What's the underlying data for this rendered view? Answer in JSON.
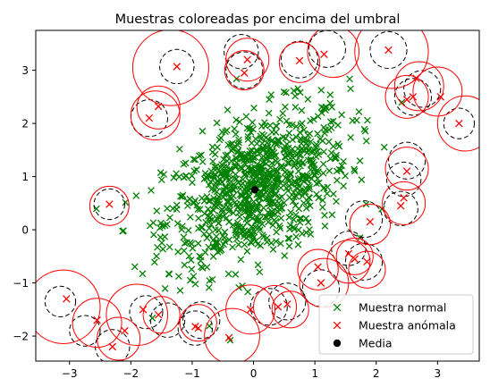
{
  "chart_data": {
    "type": "scatter",
    "title": "Muestras coloreadas por encima del umbral",
    "xlabel": "",
    "ylabel": "",
    "xlim": [
      -3.55,
      3.68
    ],
    "ylim": [
      -2.47,
      3.75
    ],
    "xticks": [
      -3,
      -2,
      -1,
      0,
      1,
      2,
      3
    ],
    "yticks": [
      -2,
      -1,
      0,
      1,
      2,
      3
    ],
    "grid": false,
    "legend_position": "lower-right",
    "colors": {
      "normal": "#008000",
      "anomaly": "#ff0000",
      "mean": "#000000",
      "dashed_circle": "#000000",
      "solid_circle": "#ff0000"
    },
    "series": [
      {
        "name": "Muestra normal",
        "marker": "x",
        "color": "#008000",
        "count_estimate": 900,
        "mean": [
          0.05,
          0.8
        ],
        "spread": [
          0.75,
          0.75
        ]
      },
      {
        "name": "Muestra anómala",
        "marker": "x",
        "color": "#ff0000",
        "points": [
          [
            -3.05,
            -1.3
          ],
          [
            -2.55,
            -1.7
          ],
          [
            -2.35,
            0.48
          ],
          [
            -2.3,
            -2.2
          ],
          [
            -2.1,
            -1.9
          ],
          [
            -1.8,
            -1.5
          ],
          [
            -1.55,
            -1.6
          ],
          [
            -1.25,
            3.07
          ],
          [
            -1.55,
            2.32
          ],
          [
            -1.7,
            2.1
          ],
          [
            -0.95,
            -1.82
          ],
          [
            -0.9,
            -1.85
          ],
          [
            -0.4,
            -2.03
          ],
          [
            -0.15,
            2.95
          ],
          [
            -0.1,
            3.2
          ],
          [
            -0.05,
            -1.5
          ],
          [
            0.4,
            -1.45
          ],
          [
            0.55,
            -1.4
          ],
          [
            0.75,
            3.18
          ],
          [
            1.05,
            -0.7
          ],
          [
            1.1,
            -1.0
          ],
          [
            1.15,
            3.3
          ],
          [
            1.55,
            -0.45
          ],
          [
            1.65,
            -0.55
          ],
          [
            1.85,
            -0.6
          ],
          [
            1.9,
            0.15
          ],
          [
            2.2,
            3.38
          ],
          [
            2.4,
            0.45
          ],
          [
            2.45,
            0.6
          ],
          [
            2.5,
            1.1
          ],
          [
            2.5,
            2.45
          ],
          [
            2.6,
            2.5
          ],
          [
            2.65,
            2.85
          ],
          [
            3.05,
            2.5
          ],
          [
            3.35,
            2.0
          ]
        ]
      },
      {
        "name": "Media",
        "marker": "o",
        "color": "#000000",
        "points": [
          [
            0.02,
            0.75
          ]
        ]
      }
    ],
    "circles": {
      "dashed": [
        [
          -3.15,
          -1.35,
          0.25
        ],
        [
          -2.75,
          -1.9,
          0.25
        ],
        [
          -2.35,
          0.48,
          0.25
        ],
        [
          -2.3,
          -2.2,
          0.28
        ],
        [
          -1.75,
          -1.55,
          0.27
        ],
        [
          -1.4,
          -1.7,
          0.28
        ],
        [
          -1.25,
          3.07,
          0.28
        ],
        [
          -1.7,
          2.1,
          0.3
        ],
        [
          -0.95,
          -1.85,
          0.28
        ],
        [
          -0.85,
          -1.7,
          0.3
        ],
        [
          -0.2,
          3.35,
          0.28
        ],
        [
          -0.15,
          3.0,
          0.3
        ],
        [
          0.25,
          -1.45,
          0.3
        ],
        [
          0.55,
          -1.35,
          0.3
        ],
        [
          0.75,
          3.2,
          0.3
        ],
        [
          1.1,
          -1.1,
          0.3
        ],
        [
          1.2,
          3.4,
          0.3
        ],
        [
          1.55,
          -0.35,
          0.28
        ],
        [
          1.8,
          0.2,
          0.3
        ],
        [
          1.8,
          -0.6,
          0.3
        ],
        [
          2.2,
          3.38,
          0.3
        ],
        [
          2.4,
          0.4,
          0.28
        ],
        [
          2.45,
          0.95,
          0.28
        ],
        [
          2.5,
          1.3,
          0.3
        ],
        [
          2.6,
          2.5,
          0.3
        ],
        [
          2.75,
          2.65,
          0.3
        ],
        [
          3.35,
          2.0,
          0.25
        ]
      ],
      "solid": [
        [
          -3.1,
          -1.45,
          0.6
        ],
        [
          -2.55,
          -1.75,
          0.4
        ],
        [
          -2.35,
          0.45,
          0.32
        ],
        [
          -2.2,
          -2.05,
          0.35
        ],
        [
          -1.9,
          -1.6,
          0.5
        ],
        [
          -1.5,
          -1.6,
          0.3
        ],
        [
          -1.35,
          3.05,
          0.62
        ],
        [
          -1.6,
          2.15,
          0.4
        ],
        [
          -1.55,
          2.3,
          0.35
        ],
        [
          -0.9,
          -1.75,
          0.3
        ],
        [
          -0.35,
          -2.0,
          0.45
        ],
        [
          -0.15,
          3.0,
          0.32
        ],
        [
          -0.1,
          3.2,
          0.35
        ],
        [
          -0.05,
          -1.5,
          0.4
        ],
        [
          0.35,
          -1.45,
          0.35
        ],
        [
          0.6,
          -1.5,
          0.3
        ],
        [
          0.75,
          3.15,
          0.33
        ],
        [
          1.05,
          -0.75,
          0.33
        ],
        [
          1.15,
          -1.0,
          0.4
        ],
        [
          1.3,
          3.35,
          0.42
        ],
        [
          1.55,
          -0.6,
          0.35
        ],
        [
          1.65,
          -0.5,
          0.3
        ],
        [
          1.85,
          -0.75,
          0.3
        ],
        [
          1.9,
          0.1,
          0.33
        ],
        [
          2.25,
          3.35,
          0.6
        ],
        [
          2.45,
          0.5,
          0.35
        ],
        [
          2.5,
          1.15,
          0.35
        ],
        [
          2.5,
          2.5,
          0.35
        ],
        [
          2.7,
          2.7,
          0.4
        ],
        [
          3.0,
          2.6,
          0.4
        ],
        [
          3.45,
          2.0,
          0.45
        ]
      ]
    }
  }
}
